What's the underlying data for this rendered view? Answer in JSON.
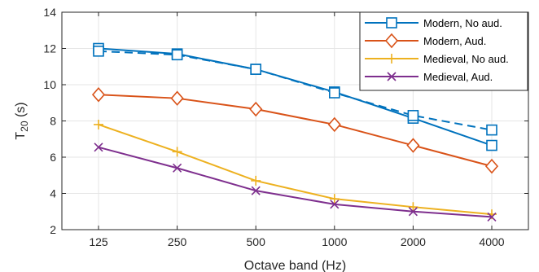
{
  "chart_data": {
    "type": "line",
    "title": "",
    "xlabel": "Octave band (Hz)",
    "ylabel_main": "T",
    "ylabel_sub": "20",
    "ylabel_unit": " (s)",
    "categories": [
      "125",
      "250",
      "500",
      "1000",
      "2000",
      "4000"
    ],
    "ylim": [
      2,
      14
    ],
    "yticks": [
      "2",
      "4",
      "6",
      "8",
      "10",
      "12",
      "14"
    ],
    "grid": true,
    "legend_position": "top-right",
    "series": [
      {
        "name": "Modern, No aud.",
        "color": "#0072BD",
        "marker": "square",
        "values": [
          12.0,
          11.7,
          10.85,
          9.6,
          8.15,
          6.65
        ]
      },
      {
        "name": "Modern, Aud.",
        "color": "#D95319",
        "marker": "diamond",
        "values": [
          9.45,
          9.25,
          8.65,
          7.8,
          6.65,
          5.5
        ]
      },
      {
        "name": "Medieval, No aud.",
        "color": "#EDB120",
        "marker": "plus",
        "values": [
          7.8,
          6.3,
          4.7,
          3.7,
          3.25,
          2.85
        ]
      },
      {
        "name": "Medieval, Aud.",
        "color": "#7E2F8E",
        "marker": "x",
        "values": [
          6.55,
          5.4,
          4.15,
          3.4,
          3.0,
          2.7
        ]
      }
    ],
    "extra_series": [
      {
        "color": "#0072BD",
        "marker": "square",
        "dashed": true,
        "values": [
          11.85,
          11.65,
          10.85,
          9.55,
          8.3,
          7.5
        ]
      }
    ]
  }
}
